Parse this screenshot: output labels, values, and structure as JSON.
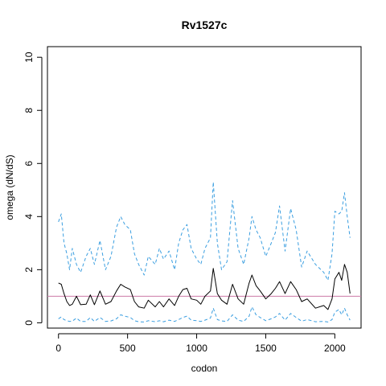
{
  "chart_data": {
    "type": "line",
    "title": "Rv1527c",
    "xlabel": "codon",
    "ylabel": "omega (dN/dS)",
    "xlim": [
      -80,
      2190
    ],
    "ylim": [
      -0.2,
      10.4
    ],
    "x_ticks": [
      0,
      500,
      1000,
      1500,
      2000
    ],
    "y_ticks": [
      0,
      2,
      4,
      6,
      8,
      10
    ],
    "grid": false,
    "reference_line": {
      "y": 1,
      "color": "#cc79a7"
    },
    "colors": {
      "mean": "#000000",
      "bounds": "#3a9ee0",
      "reference": "#cc79a7"
    },
    "series": [
      {
        "style": "solid",
        "x": [
          0,
          20,
          40,
          60,
          80,
          100,
          130,
          160,
          200,
          230,
          260,
          300,
          340,
          380,
          420,
          450,
          480,
          520,
          550,
          580,
          620,
          650,
          700,
          730,
          760,
          800,
          840,
          870,
          900,
          930,
          960,
          1000,
          1030,
          1060,
          1100,
          1120,
          1150,
          1180,
          1220,
          1260,
          1300,
          1340,
          1380,
          1400,
          1430,
          1460,
          1500,
          1540,
          1570,
          1600,
          1640,
          1680,
          1720,
          1760,
          1800,
          1860,
          1920,
          1950,
          1980,
          2000,
          2030,
          2050,
          2070,
          2090,
          2110
        ],
        "y": [
          1.5,
          1.45,
          1.1,
          0.8,
          0.65,
          0.7,
          1.0,
          0.68,
          0.7,
          1.05,
          0.68,
          1.2,
          0.7,
          0.8,
          1.2,
          1.45,
          1.35,
          1.25,
          0.8,
          0.6,
          0.55,
          0.85,
          0.6,
          0.8,
          0.6,
          0.9,
          0.65,
          1.0,
          1.25,
          1.3,
          0.9,
          0.85,
          0.7,
          1.0,
          1.2,
          2.05,
          1.1,
          0.85,
          0.7,
          1.45,
          0.9,
          0.7,
          1.5,
          1.8,
          1.4,
          1.2,
          0.9,
          1.1,
          1.3,
          1.55,
          1.1,
          1.55,
          1.25,
          0.8,
          0.9,
          0.55,
          0.65,
          0.5,
          0.9,
          1.65,
          1.9,
          1.6,
          2.2,
          1.9,
          1.1
        ]
      },
      {
        "style": "dashed",
        "x": [
          0,
          20,
          40,
          60,
          80,
          100,
          130,
          160,
          200,
          230,
          260,
          300,
          340,
          380,
          420,
          450,
          480,
          520,
          550,
          580,
          620,
          650,
          700,
          730,
          760,
          800,
          840,
          870,
          900,
          930,
          960,
          1000,
          1030,
          1060,
          1100,
          1120,
          1150,
          1180,
          1220,
          1260,
          1300,
          1340,
          1380,
          1400,
          1430,
          1460,
          1500,
          1540,
          1570,
          1600,
          1640,
          1680,
          1720,
          1760,
          1800,
          1860,
          1920,
          1950,
          1980,
          2000,
          2030,
          2050,
          2070,
          2090,
          2110
        ],
        "y": [
          3.8,
          4.1,
          3.0,
          2.6,
          2.0,
          2.8,
          2.2,
          1.9,
          2.5,
          2.8,
          2.2,
          3.1,
          2.0,
          2.5,
          3.6,
          4.0,
          3.7,
          3.5,
          2.6,
          2.2,
          1.8,
          2.5,
          2.2,
          2.8,
          2.4,
          2.7,
          2.0,
          3.0,
          3.5,
          3.7,
          2.8,
          2.4,
          2.2,
          2.8,
          3.2,
          5.3,
          3.0,
          2.0,
          2.3,
          4.6,
          2.8,
          2.2,
          3.2,
          4.0,
          3.5,
          3.2,
          2.5,
          3.0,
          3.4,
          4.4,
          2.7,
          4.3,
          3.5,
          2.1,
          2.7,
          2.2,
          1.9,
          1.6,
          2.6,
          4.2,
          4.1,
          4.2,
          4.9,
          4.0,
          3.2
        ]
      },
      {
        "style": "dashed",
        "x": [
          0,
          20,
          40,
          60,
          80,
          100,
          130,
          160,
          200,
          230,
          260,
          300,
          340,
          380,
          420,
          450,
          480,
          520,
          550,
          580,
          620,
          650,
          700,
          730,
          760,
          800,
          840,
          870,
          900,
          930,
          960,
          1000,
          1030,
          1060,
          1100,
          1120,
          1150,
          1180,
          1220,
          1260,
          1300,
          1340,
          1380,
          1400,
          1430,
          1460,
          1500,
          1540,
          1570,
          1600,
          1640,
          1680,
          1720,
          1760,
          1800,
          1860,
          1920,
          1950,
          1980,
          2000,
          2030,
          2050,
          2070,
          2090,
          2110
        ],
        "y": [
          0.15,
          0.22,
          0.12,
          0.08,
          0.05,
          0.06,
          0.18,
          0.05,
          0.05,
          0.2,
          0.05,
          0.2,
          0.05,
          0.07,
          0.15,
          0.3,
          0.25,
          0.2,
          0.08,
          0.04,
          0.03,
          0.08,
          0.04,
          0.08,
          0.04,
          0.1,
          0.05,
          0.12,
          0.2,
          0.25,
          0.1,
          0.08,
          0.05,
          0.1,
          0.18,
          0.55,
          0.12,
          0.07,
          0.05,
          0.3,
          0.1,
          0.05,
          0.25,
          0.6,
          0.3,
          0.2,
          0.08,
          0.15,
          0.22,
          0.35,
          0.1,
          0.35,
          0.2,
          0.06,
          0.12,
          0.04,
          0.05,
          0.03,
          0.12,
          0.4,
          0.5,
          0.3,
          0.55,
          0.3,
          0.1
        ]
      }
    ]
  }
}
